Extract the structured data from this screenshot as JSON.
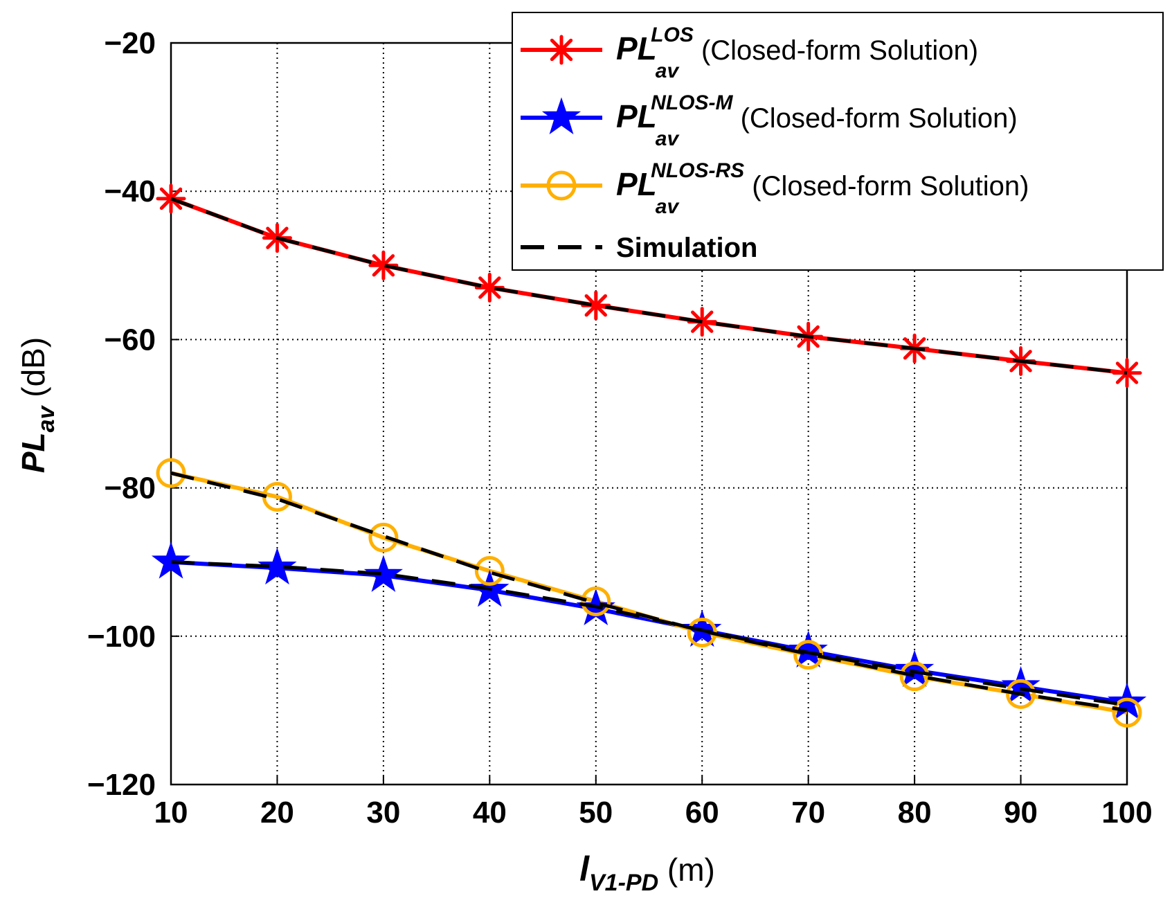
{
  "chart_data": {
    "type": "line",
    "title": "",
    "x": [
      10,
      20,
      30,
      40,
      50,
      60,
      70,
      80,
      90,
      100
    ],
    "xlim": [
      10,
      100
    ],
    "ylim": [
      -120,
      -20
    ],
    "xticks": [
      "10",
      "20",
      "30",
      "40",
      "50",
      "60",
      "70",
      "80",
      "90",
      "100"
    ],
    "yticks": [
      "−20",
      "−40",
      "−60",
      "−80",
      "−100",
      "−120"
    ],
    "ytick_values": [
      -20,
      -40,
      -60,
      -80,
      -100,
      -120
    ],
    "grid": true,
    "xlabel": {
      "main": "l",
      "sub": "V1-PD",
      "unit": " (m)"
    },
    "ylabel": {
      "main": "PL",
      "sub": "av",
      "unit": " (dB)"
    },
    "legend_position": "top-right",
    "series": [
      {
        "name": "LOS closed-form",
        "legend_main": "PL",
        "legend_sub": "av",
        "legend_sup": "LOS",
        "legend_suffix": " (Closed-form Solution)",
        "color": "#ff0000",
        "marker": "asterisk",
        "values": [
          -41,
          -46.3,
          -50,
          -53,
          -55.4,
          -57.6,
          -59.6,
          -61.2,
          -62.9,
          -64.5
        ]
      },
      {
        "name": "NLOS-M closed-form",
        "legend_main": "PL",
        "legend_sub": "av",
        "legend_sup": "NLOS-M",
        "legend_suffix": " (Closed-form Solution)",
        "color": "#0000ff",
        "marker": "star",
        "values": [
          -90,
          -90.8,
          -91.8,
          -93.8,
          -96.3,
          -99.2,
          -102,
          -104.6,
          -106.8,
          -109
        ]
      },
      {
        "name": "NLOS-RS closed-form",
        "legend_main": "PL",
        "legend_sub": "av",
        "legend_sup": "NLOS-RS",
        "legend_suffix": " (Closed-form Solution)",
        "color": "#ffb000",
        "marker": "circle",
        "values": [
          -78,
          -81.2,
          -86.7,
          -91.2,
          -95.3,
          -99.5,
          -102.5,
          -105.4,
          -107.8,
          -110.3
        ]
      },
      {
        "name": "Simulation",
        "legend_label": "Simulation",
        "color": "#000000",
        "marker": "none",
        "dashed": true,
        "sim_of": [
          [
            -41,
            -46.3,
            -50,
            -53,
            -55.4,
            -57.6,
            -59.6,
            -61.2,
            -62.9,
            -64.5
          ],
          [
            -90,
            -90.6,
            -91.6,
            -93.6,
            -96,
            -99.2,
            -102.2,
            -104.8,
            -107.1,
            -109.3
          ],
          [
            -78,
            -81.5,
            -86.5,
            -91.4,
            -95.5,
            -99.3,
            -102.4,
            -105.3,
            -107.8,
            -110
          ]
        ]
      }
    ]
  }
}
